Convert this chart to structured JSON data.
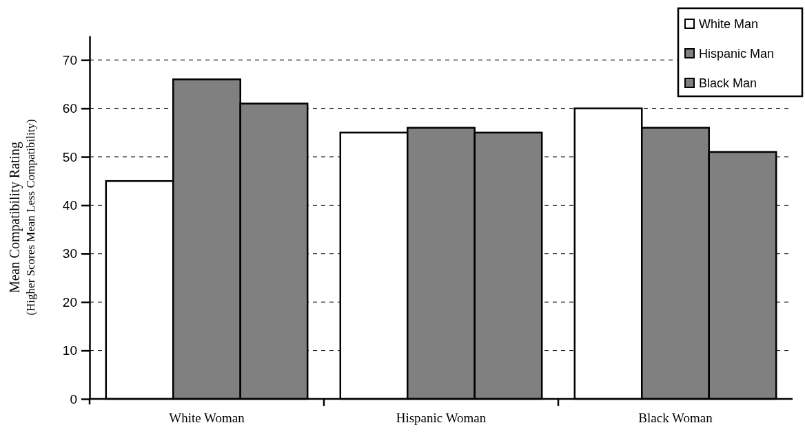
{
  "chart_data": {
    "type": "bar",
    "categories": [
      "White Woman",
      "Hispanic Woman",
      "Black Woman"
    ],
    "series": [
      {
        "name": "White Man",
        "color": "#ffffff",
        "values": [
          45,
          55,
          60
        ]
      },
      {
        "name": "Hispanic Man",
        "color": "#808080",
        "values": [
          66,
          56,
          56
        ]
      },
      {
        "name": "Black Man",
        "color": "#808080",
        "values": [
          61,
          55,
          51
        ]
      }
    ],
    "ylabel": "Mean Compatibility Rating\n(Higher Scores Mean Less Compatibility)",
    "ylim": [
      0,
      75
    ],
    "yticks": [
      0,
      10,
      20,
      30,
      40,
      50,
      60,
      70
    ],
    "grid": "y",
    "legend": "top right"
  }
}
